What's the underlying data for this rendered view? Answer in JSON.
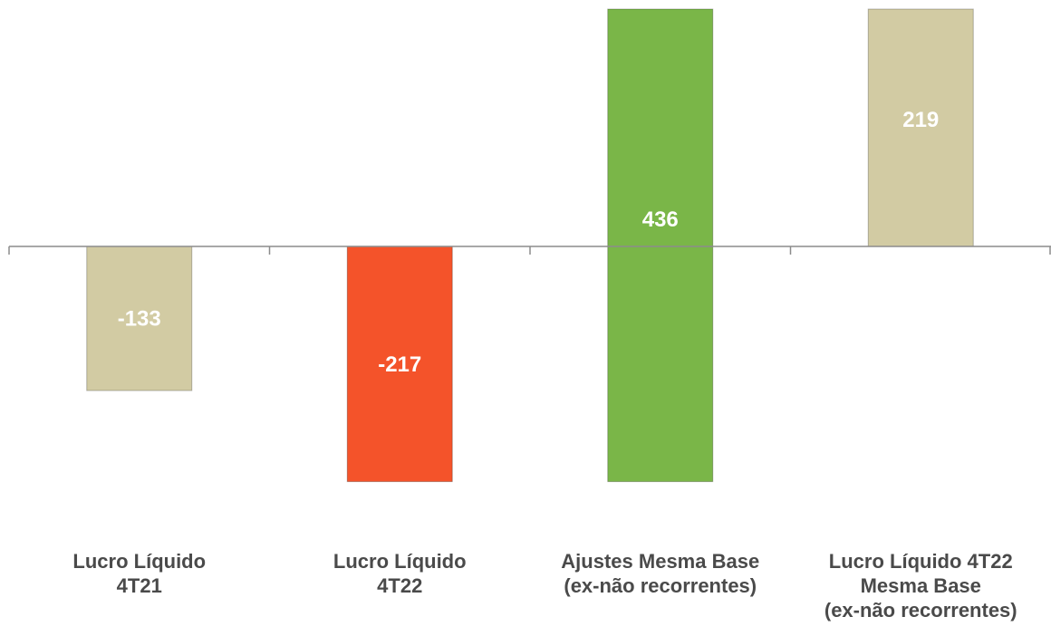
{
  "chart_data": {
    "type": "bar",
    "subtype": "waterfall",
    "categories": [
      [
        "Lucro Líquido",
        "4T21"
      ],
      [
        "Lucro Líquido",
        "4T22"
      ],
      [
        "Ajustes Mesma Base",
        "(ex-não recorrentes)"
      ],
      [
        "Lucro Líquido 4T22",
        "Mesma Base",
        "(ex-não recorrentes)"
      ]
    ],
    "bars": [
      {
        "label": "-133",
        "start": 0,
        "end": -133,
        "color": "#d2cba3"
      },
      {
        "label": "-217",
        "start": 0,
        "end": -217,
        "color": "#f4532a"
      },
      {
        "label": "436",
        "start": -217,
        "end": 219,
        "color": "#7ab648"
      },
      {
        "label": "219",
        "start": 0,
        "end": 219,
        "color": "#d2cba3"
      }
    ],
    "title": "",
    "xlabel": "",
    "ylabel": "",
    "ylim": [
      -217,
      219
    ],
    "grid": false,
    "legend": "none",
    "axis_color": "#8c8c8c",
    "label_color": "#4a4a4a",
    "value_label_color": "#ffffff"
  }
}
